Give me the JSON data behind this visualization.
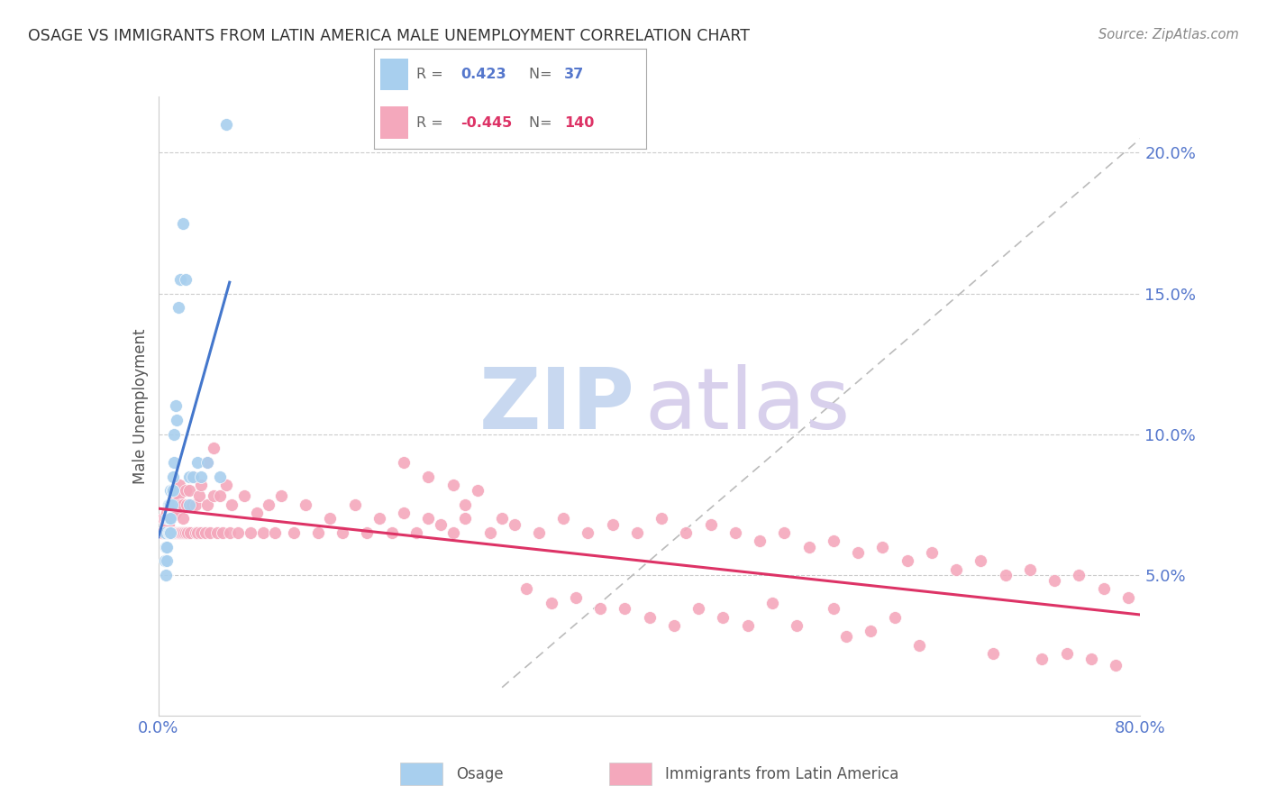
{
  "title": "OSAGE VS IMMIGRANTS FROM LATIN AMERICA MALE UNEMPLOYMENT CORRELATION CHART",
  "source": "Source: ZipAtlas.com",
  "ylabel": "Male Unemployment",
  "xlim": [
    0.0,
    0.8
  ],
  "ylim": [
    0.0,
    0.22
  ],
  "yticks": [
    0.05,
    0.1,
    0.15,
    0.2
  ],
  "ytick_labels": [
    "5.0%",
    "10.0%",
    "15.0%",
    "20.0%"
  ],
  "xtick_show": [
    0.0,
    0.8
  ],
  "xtick_labels": [
    "0.0%",
    "80.0%"
  ],
  "legend_labels": [
    "Osage",
    "Immigrants from Latin America"
  ],
  "R_osage": 0.423,
  "N_osage": 37,
  "R_latin": -0.445,
  "N_latin": 140,
  "blue_color": "#A8CFEE",
  "pink_color": "#F4A8BC",
  "blue_line_color": "#4477CC",
  "pink_line_color": "#DD3366",
  "title_color": "#333333",
  "source_color": "#888888",
  "tick_label_color": "#5577CC",
  "ylabel_color": "#555555",
  "background_color": "#FFFFFF",
  "grid_color": "#CCCCCC",
  "legend_border_color": "#AAAAAA",
  "watermark_zip_color": "#C8D8F0",
  "watermark_atlas_color": "#D8D0EC",
  "osage_x": [
    0.005,
    0.005,
    0.006,
    0.006,
    0.007,
    0.007,
    0.007,
    0.008,
    0.008,
    0.008,
    0.009,
    0.009,
    0.009,
    0.01,
    0.01,
    0.01,
    0.01,
    0.011,
    0.011,
    0.012,
    0.012,
    0.013,
    0.013,
    0.014,
    0.015,
    0.016,
    0.018,
    0.02,
    0.022,
    0.025,
    0.025,
    0.028,
    0.032,
    0.035,
    0.04,
    0.05,
    0.055
  ],
  "osage_y": [
    0.065,
    0.055,
    0.06,
    0.05,
    0.06,
    0.055,
    0.07,
    0.065,
    0.07,
    0.075,
    0.065,
    0.07,
    0.075,
    0.065,
    0.07,
    0.075,
    0.08,
    0.075,
    0.08,
    0.08,
    0.085,
    0.09,
    0.1,
    0.11,
    0.105,
    0.145,
    0.155,
    0.175,
    0.155,
    0.085,
    0.075,
    0.085,
    0.09,
    0.085,
    0.09,
    0.085,
    0.21
  ],
  "latin_x": [
    0.003,
    0.004,
    0.005,
    0.005,
    0.006,
    0.006,
    0.007,
    0.007,
    0.007,
    0.008,
    0.008,
    0.009,
    0.009,
    0.01,
    0.01,
    0.01,
    0.011,
    0.011,
    0.012,
    0.012,
    0.013,
    0.013,
    0.014,
    0.014,
    0.015,
    0.015,
    0.016,
    0.016,
    0.017,
    0.017,
    0.018,
    0.018,
    0.019,
    0.02,
    0.02,
    0.021,
    0.022,
    0.022,
    0.023,
    0.024,
    0.025,
    0.026,
    0.027,
    0.028,
    0.03,
    0.03,
    0.032,
    0.033,
    0.035,
    0.035,
    0.038,
    0.04,
    0.04,
    0.042,
    0.045,
    0.045,
    0.048,
    0.05,
    0.052,
    0.055,
    0.058,
    0.06,
    0.065,
    0.07,
    0.075,
    0.08,
    0.085,
    0.09,
    0.095,
    0.1,
    0.11,
    0.12,
    0.13,
    0.14,
    0.15,
    0.16,
    0.17,
    0.18,
    0.19,
    0.2,
    0.21,
    0.22,
    0.23,
    0.24,
    0.25,
    0.27,
    0.29,
    0.31,
    0.33,
    0.35,
    0.37,
    0.39,
    0.41,
    0.43,
    0.45,
    0.47,
    0.49,
    0.51,
    0.53,
    0.55,
    0.57,
    0.59,
    0.61,
    0.63,
    0.65,
    0.67,
    0.69,
    0.71,
    0.73,
    0.75,
    0.77,
    0.79,
    0.5,
    0.55,
    0.6,
    0.38,
    0.42,
    0.46,
    0.52,
    0.58,
    0.3,
    0.32,
    0.34,
    0.36,
    0.4,
    0.44,
    0.48,
    0.56,
    0.62,
    0.68,
    0.72,
    0.74,
    0.76,
    0.78,
    0.25,
    0.28,
    0.26,
    0.24,
    0.22,
    0.2
  ],
  "latin_y": [
    0.065,
    0.07,
    0.065,
    0.07,
    0.065,
    0.068,
    0.065,
    0.068,
    0.072,
    0.065,
    0.068,
    0.065,
    0.072,
    0.065,
    0.07,
    0.075,
    0.065,
    0.072,
    0.065,
    0.075,
    0.065,
    0.078,
    0.065,
    0.072,
    0.065,
    0.075,
    0.065,
    0.078,
    0.065,
    0.082,
    0.065,
    0.075,
    0.065,
    0.07,
    0.075,
    0.065,
    0.08,
    0.065,
    0.075,
    0.065,
    0.08,
    0.065,
    0.075,
    0.085,
    0.065,
    0.075,
    0.065,
    0.078,
    0.065,
    0.082,
    0.065,
    0.075,
    0.09,
    0.065,
    0.078,
    0.095,
    0.065,
    0.078,
    0.065,
    0.082,
    0.065,
    0.075,
    0.065,
    0.078,
    0.065,
    0.072,
    0.065,
    0.075,
    0.065,
    0.078,
    0.065,
    0.075,
    0.065,
    0.07,
    0.065,
    0.075,
    0.065,
    0.07,
    0.065,
    0.072,
    0.065,
    0.07,
    0.068,
    0.065,
    0.07,
    0.065,
    0.068,
    0.065,
    0.07,
    0.065,
    0.068,
    0.065,
    0.07,
    0.065,
    0.068,
    0.065,
    0.062,
    0.065,
    0.06,
    0.062,
    0.058,
    0.06,
    0.055,
    0.058,
    0.052,
    0.055,
    0.05,
    0.052,
    0.048,
    0.05,
    0.045,
    0.042,
    0.04,
    0.038,
    0.035,
    0.038,
    0.032,
    0.035,
    0.032,
    0.03,
    0.045,
    0.04,
    0.042,
    0.038,
    0.035,
    0.038,
    0.032,
    0.028,
    0.025,
    0.022,
    0.02,
    0.022,
    0.02,
    0.018,
    0.075,
    0.07,
    0.08,
    0.082,
    0.085,
    0.09
  ]
}
